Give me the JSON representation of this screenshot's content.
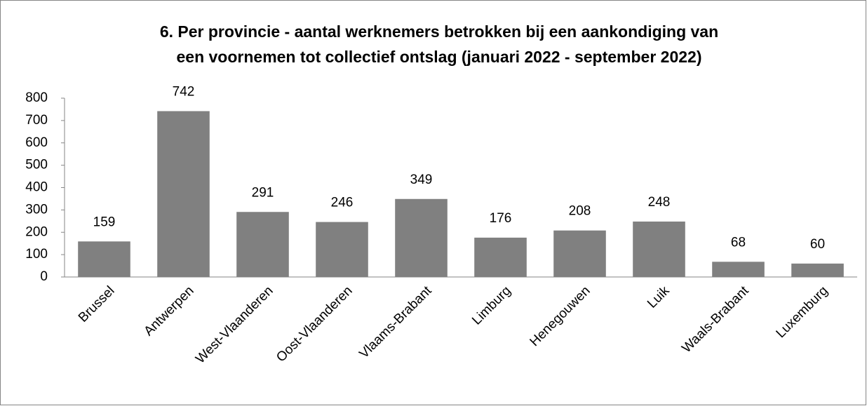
{
  "chart_data": {
    "type": "bar",
    "title": [
      "6. Per provincie - aantal werknemers betrokken bij een aankondiging van",
      "een voornemen tot collectief ontslag (januari 2022 - september 2022)"
    ],
    "categories": [
      "Brussel",
      "Antwerpen",
      "West-Vlaanderen",
      "Oost-Vlaanderen",
      "Vlaams-Brabant",
      "Limburg",
      "Henegouwen",
      "Luik",
      "Waals-Brabant",
      "Luxemburg"
    ],
    "values": [
      159,
      742,
      291,
      246,
      349,
      176,
      208,
      248,
      68,
      60
    ],
    "color": "#808080",
    "ylim": [
      0,
      800
    ],
    "yticks": [
      0,
      100,
      200,
      300,
      400,
      500,
      600,
      700,
      800
    ],
    "grid": false
  }
}
